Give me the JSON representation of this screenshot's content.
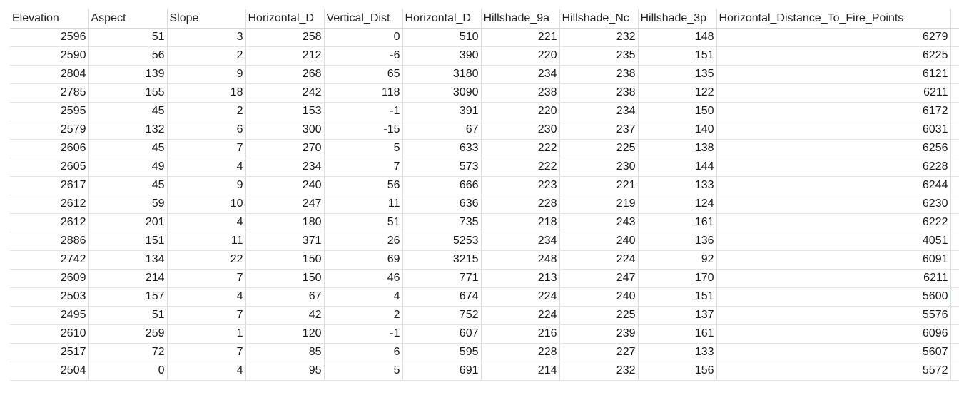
{
  "spreadsheet": {
    "columns": [
      "Elevation",
      "Aspect",
      "Slope",
      "Horizontal_D",
      "Vertical_Dist",
      "Horizontal_D",
      "Hillshade_9a",
      "Hillshade_Nc",
      "Hillshade_3p",
      "Horizontal_Distance_To_Fire_Points"
    ],
    "rows": [
      [
        "2596",
        "51",
        "3",
        "258",
        "0",
        "510",
        "221",
        "232",
        "148",
        "6279"
      ],
      [
        "2590",
        "56",
        "2",
        "212",
        "-6",
        "390",
        "220",
        "235",
        "151",
        "6225"
      ],
      [
        "2804",
        "139",
        "9",
        "268",
        "65",
        "3180",
        "234",
        "238",
        "135",
        "6121"
      ],
      [
        "2785",
        "155",
        "18",
        "242",
        "118",
        "3090",
        "238",
        "238",
        "122",
        "6211"
      ],
      [
        "2595",
        "45",
        "2",
        "153",
        "-1",
        "391",
        "220",
        "234",
        "150",
        "6172"
      ],
      [
        "2579",
        "132",
        "6",
        "300",
        "-15",
        "67",
        "230",
        "237",
        "140",
        "6031"
      ],
      [
        "2606",
        "45",
        "7",
        "270",
        "5",
        "633",
        "222",
        "225",
        "138",
        "6256"
      ],
      [
        "2605",
        "49",
        "4",
        "234",
        "7",
        "573",
        "222",
        "230",
        "144",
        "6228"
      ],
      [
        "2617",
        "45",
        "9",
        "240",
        "56",
        "666",
        "223",
        "221",
        "133",
        "6244"
      ],
      [
        "2612",
        "59",
        "10",
        "247",
        "11",
        "636",
        "228",
        "219",
        "124",
        "6230"
      ],
      [
        "2612",
        "201",
        "4",
        "180",
        "51",
        "735",
        "218",
        "243",
        "161",
        "6222"
      ],
      [
        "2886",
        "151",
        "11",
        "371",
        "26",
        "5253",
        "234",
        "240",
        "136",
        "4051"
      ],
      [
        "2742",
        "134",
        "22",
        "150",
        "69",
        "3215",
        "248",
        "224",
        "92",
        "6091"
      ],
      [
        "2609",
        "214",
        "7",
        "150",
        "46",
        "771",
        "213",
        "247",
        "170",
        "6211"
      ],
      [
        "2503",
        "157",
        "4",
        "67",
        "4",
        "674",
        "224",
        "240",
        "151",
        "5600"
      ],
      [
        "2495",
        "51",
        "7",
        "42",
        "2",
        "752",
        "224",
        "225",
        "137",
        "5576"
      ],
      [
        "2610",
        "259",
        "1",
        "120",
        "-1",
        "607",
        "216",
        "239",
        "161",
        "6096"
      ],
      [
        "2517",
        "72",
        "7",
        "85",
        "6",
        "595",
        "228",
        "227",
        "133",
        "5607"
      ],
      [
        "2504",
        "0",
        "4",
        "95",
        "5",
        "691",
        "214",
        "232",
        "156",
        "5572"
      ]
    ],
    "selected_row_index": 14,
    "accent_color": "#217346"
  }
}
